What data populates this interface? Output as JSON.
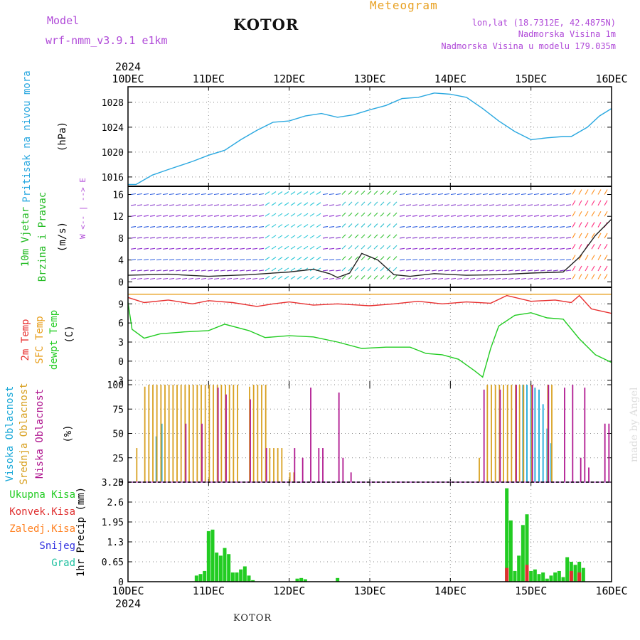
{
  "header": {
    "title": "KOTOR",
    "model_label": "Model",
    "model_name": "wrf-nmm_v3.9.1 e1km",
    "meteogram": "Meteogram",
    "lonlat": "lon,lat (18.7312E, 42.4875N)",
    "elevation": "Nadmorska Visina 1m",
    "model_elevation": "Nadmorska Visina u modelu 179.035m"
  },
  "footer": "KOTOR",
  "credit": "made by Angel",
  "colors": {
    "pressure": "#2aa8e0",
    "temp2m": "#e83030",
    "sfc": "#e8a020",
    "dew": "#22cc22",
    "high_cloud": "#1aa8d8",
    "mid_cloud": "#d8a020",
    "low_cloud": "#b01890",
    "total_rain": "#22cc22",
    "conv_rain": "#e03030",
    "frozen": "#ff8020",
    "snow": "#3030e0",
    "grad": "#20c0a0",
    "label_purple": "#b04ad8",
    "grid": "#888888"
  },
  "chart_data": [
    {
      "type": "line",
      "id": "pressure",
      "ylabel": "Pritisak na nivou mora",
      "unit": "(hPa)",
      "yticks": [
        1016,
        1020,
        1024,
        1028
      ],
      "ylim": [
        1014.5,
        1030.5
      ],
      "x_top_year": "2024",
      "x_bottom_year": "2024",
      "xticks": [
        "10DEC",
        "11DEC",
        "12DEC",
        "13DEC",
        "14DEC",
        "15DEC",
        "16DEC"
      ],
      "x": [
        0,
        0.1,
        0.3,
        0.5,
        0.8,
        1.0,
        1.2,
        1.4,
        1.6,
        1.8,
        2.0,
        2.2,
        2.4,
        2.6,
        2.8,
        3.0,
        3.2,
        3.4,
        3.6,
        3.8,
        4.0,
        4.2,
        4.4,
        4.6,
        4.8,
        5.0,
        5.2,
        5.4,
        5.5,
        5.7,
        5.85,
        6.0
      ],
      "values": [
        1014.8,
        1014.8,
        1016.3,
        1017.2,
        1018.5,
        1019.5,
        1020.3,
        1022.0,
        1023.5,
        1024.8,
        1025.0,
        1025.8,
        1026.2,
        1025.6,
        1026.0,
        1026.8,
        1027.5,
        1028.6,
        1028.8,
        1029.5,
        1029.3,
        1028.8,
        1027.0,
        1025.0,
        1023.3,
        1022.0,
        1022.3,
        1022.5,
        1022.5,
        1024.0,
        1025.8,
        1027.0
      ]
    },
    {
      "type": "line",
      "id": "wind",
      "ylabel": "10m Vjetar",
      "ylabel2": "Brzina i Pravac",
      "unit": "(m/s)",
      "compass": "W <-- | --> E",
      "yticks": [
        0,
        4,
        8,
        12,
        16
      ],
      "ylim": [
        -1,
        17.5
      ],
      "series": [
        {
          "name": "Brzina",
          "x": [
            0,
            0.5,
            1.0,
            1.5,
            2.0,
            2.3,
            2.5,
            2.6,
            2.75,
            2.9,
            3.1,
            3.3,
            3.5,
            3.8,
            4.2,
            4.6,
            5.0,
            5.4,
            5.6,
            5.8,
            6.0
          ],
          "values": [
            1.2,
            1.4,
            1.0,
            1.3,
            1.8,
            2.3,
            1.5,
            0.8,
            1.6,
            5.2,
            4.0,
            1.3,
            1.0,
            1.5,
            1.2,
            1.3,
            1.6,
            1.8,
            4.5,
            8.5,
            11.5
          ]
        }
      ]
    },
    {
      "type": "line",
      "id": "temperature",
      "ylabel": "2m Temp",
      "ylabel2": "SFC Temp",
      "ylabel3": "dewpt Temp",
      "unit": "(C)",
      "yticks": [
        -3,
        0,
        3,
        6,
        9
      ],
      "ylim": [
        -3.7,
        11.6
      ],
      "series": [
        {
          "name": "2m Temp",
          "x": [
            0,
            0.2,
            0.5,
            0.8,
            1.0,
            1.3,
            1.6,
            1.8,
            2.0,
            2.3,
            2.6,
            3.0,
            3.3,
            3.6,
            3.9,
            4.2,
            4.5,
            4.7,
            5.0,
            5.3,
            5.5,
            5.6,
            5.75,
            6.0
          ],
          "values": [
            10.0,
            9.2,
            9.6,
            9.0,
            9.5,
            9.2,
            8.6,
            9.0,
            9.3,
            8.8,
            9.0,
            8.7,
            9.0,
            9.4,
            9.0,
            9.3,
            9.1,
            10.3,
            9.4,
            9.6,
            9.2,
            10.3,
            8.2,
            7.5
          ]
        },
        {
          "name": "SFC Temp",
          "x": [
            0,
            6.0
          ],
          "values": [
            10.5,
            10.5
          ]
        },
        {
          "name": "dewpt Temp",
          "x": [
            0,
            0.05,
            0.2,
            0.4,
            0.7,
            1.0,
            1.2,
            1.5,
            1.7,
            2.0,
            2.3,
            2.6,
            2.9,
            3.2,
            3.5,
            3.7,
            3.9,
            4.1,
            4.3,
            4.4,
            4.5,
            4.6,
            4.8,
            5.0,
            5.2,
            5.4,
            5.6,
            5.8,
            6.0
          ],
          "values": [
            9.2,
            5.0,
            3.6,
            4.3,
            4.6,
            4.8,
            5.8,
            4.8,
            3.7,
            4.0,
            3.8,
            3.0,
            2.0,
            2.2,
            2.2,
            1.2,
            1.0,
            0.3,
            -1.5,
            -2.5,
            2.0,
            5.5,
            7.2,
            7.6,
            6.8,
            6.6,
            3.5,
            1.0,
            -0.2
          ]
        }
      ]
    },
    {
      "type": "bar",
      "id": "clouds",
      "ylabel": "Visoka Oblacnost",
      "ylabel2": "Srednja Oblacnost",
      "ylabel3": "Niska Oblacnost",
      "unit": "(%)",
      "yticks": [
        0,
        25,
        50,
        75,
        100
      ],
      "ylim": [
        0,
        100
      ],
      "series": [
        {
          "name": "Visoka Oblacnost",
          "x": [
            0.35,
            0.42,
            4.9,
            4.95,
            5.0,
            5.05,
            5.1,
            5.15,
            5.2,
            5.25
          ],
          "values": [
            47,
            60,
            100,
            100,
            98,
            97,
            95,
            80,
            55,
            40
          ]
        },
        {
          "name": "Srednja Oblacnost",
          "x": [
            0.1,
            0.2,
            0.25,
            0.3,
            0.35,
            0.4,
            0.45,
            0.5,
            0.55,
            0.6,
            0.65,
            0.7,
            0.75,
            0.8,
            0.85,
            0.9,
            0.95,
            1.0,
            1.05,
            1.1,
            1.15,
            1.2,
            1.25,
            1.3,
            1.35,
            1.5,
            1.55,
            1.6,
            1.65,
            1.7,
            1.75,
            1.8,
            1.85,
            1.9,
            2.0,
            2.05,
            4.35,
            4.45,
            4.5,
            4.55,
            4.6,
            4.65,
            4.7,
            4.75,
            4.8,
            4.85,
            4.9,
            5.0,
            5.2,
            5.25
          ],
          "values": [
            35,
            98,
            100,
            100,
            100,
            100,
            100,
            100,
            100,
            100,
            100,
            100,
            100,
            100,
            100,
            100,
            100,
            100,
            100,
            100,
            100,
            100,
            100,
            100,
            100,
            98,
            100,
            100,
            100,
            100,
            35,
            35,
            35,
            35,
            10,
            10,
            25,
            100,
            100,
            100,
            100,
            100,
            100,
            100,
            100,
            100,
            100,
            100,
            100,
            100
          ]
        },
        {
          "name": "Niska Oblacnost",
          "x": [
            0.7,
            0.9,
            1.1,
            1.2,
            1.5,
            1.7,
            2.05,
            2.15,
            2.25,
            2.35,
            2.4,
            2.6,
            2.65,
            2.75,
            4.4,
            4.6,
            4.8,
            5.0,
            5.2,
            5.4,
            5.5,
            5.6,
            5.65,
            5.7,
            5.9,
            5.95
          ],
          "values": [
            60,
            60,
            97,
            90,
            85,
            35,
            35,
            25,
            97,
            35,
            35,
            92,
            25,
            10,
            95,
            95,
            100,
            100,
            100,
            97,
            100,
            25,
            97,
            15,
            60,
            60
          ]
        }
      ]
    },
    {
      "type": "bar",
      "id": "precip",
      "ylabel": "1hr Precip (mm)",
      "legend": [
        "Ukupna Kisa",
        "Konvek.Kisa",
        "Zaledj.Kisa",
        "Snijeg",
        "Grad"
      ],
      "yticks": [
        0,
        0.65,
        1.3,
        1.95,
        2.6,
        3.25
      ],
      "ylim": [
        0,
        3.25
      ],
      "series": [
        {
          "name": "Ukupna Kisa",
          "x": [
            0.85,
            0.9,
            0.95,
            1.0,
            1.05,
            1.1,
            1.15,
            1.2,
            1.25,
            1.3,
            1.35,
            1.4,
            1.45,
            1.5,
            1.55,
            2.1,
            2.15,
            2.2,
            2.6,
            4.7,
            4.75,
            4.8,
            4.85,
            4.9,
            4.95,
            5.0,
            5.05,
            5.1,
            5.15,
            5.2,
            5.25,
            5.3,
            5.35,
            5.4,
            5.45,
            5.5,
            5.55,
            5.6,
            5.65
          ],
          "values": [
            0.2,
            0.25,
            0.35,
            1.65,
            1.7,
            0.95,
            0.85,
            1.1,
            0.9,
            0.3,
            0.3,
            0.4,
            0.5,
            0.2,
            0.05,
            0.1,
            0.12,
            0.08,
            0.12,
            3.05,
            2.0,
            0.35,
            0.85,
            1.85,
            2.2,
            0.35,
            0.4,
            0.25,
            0.3,
            0.1,
            0.2,
            0.3,
            0.35,
            0.15,
            0.8,
            0.65,
            0.55,
            0.65,
            0.45
          ]
        },
        {
          "name": "Konvek.Kisa",
          "x": [
            4.7,
            4.95,
            5.5,
            5.6
          ],
          "values": [
            0.45,
            0.55,
            0.35,
            0.3
          ]
        }
      ]
    }
  ]
}
